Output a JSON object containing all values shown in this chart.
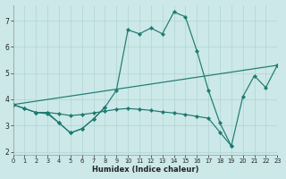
{
  "xlabel": "Humidex (Indice chaleur)",
  "bg_color": "#cce8e8",
  "line_color": "#1d7a70",
  "grid_color": "#b2d4d4",
  "xlim": [
    0,
    23
  ],
  "ylim": [
    1.9,
    7.6
  ],
  "yticks": [
    2,
    3,
    4,
    5,
    6,
    7
  ],
  "xticks": [
    0,
    1,
    2,
    3,
    4,
    5,
    6,
    7,
    8,
    9,
    10,
    11,
    12,
    13,
    14,
    15,
    16,
    17,
    18,
    19,
    20,
    21,
    22,
    23
  ],
  "curves": [
    {
      "x": [
        0,
        1,
        2,
        3,
        4,
        5,
        6,
        7,
        8,
        9,
        10,
        11,
        12,
        13,
        14,
        15,
        16,
        17,
        18,
        19,
        20,
        21,
        22,
        23
      ],
      "y": [
        3.8,
        3.65,
        3.5,
        3.5,
        3.1,
        2.72,
        2.88,
        3.25,
        3.7,
        4.35,
        6.65,
        6.5,
        6.72,
        6.5,
        7.33,
        7.15,
        5.85,
        4.35,
        3.1,
        2.22,
        4.1,
        4.9,
        4.45,
        5.3
      ]
    },
    {
      "x": [
        0,
        23
      ],
      "y": [
        3.8,
        5.3
      ]
    },
    {
      "x": [
        0,
        1,
        2,
        3,
        4,
        5,
        6,
        7,
        8,
        9,
        10,
        11,
        12,
        13,
        14,
        15,
        16,
        17,
        18,
        19
      ],
      "y": [
        3.8,
        3.65,
        3.5,
        3.5,
        3.45,
        3.38,
        3.42,
        3.48,
        3.55,
        3.62,
        3.65,
        3.62,
        3.58,
        3.52,
        3.48,
        3.42,
        3.35,
        3.28,
        2.75,
        2.22
      ]
    },
    {
      "x": [
        2,
        3,
        4,
        5,
        6,
        7,
        8
      ],
      "y": [
        3.5,
        3.45,
        3.1,
        2.72,
        2.88,
        3.25,
        3.7
      ]
    }
  ]
}
